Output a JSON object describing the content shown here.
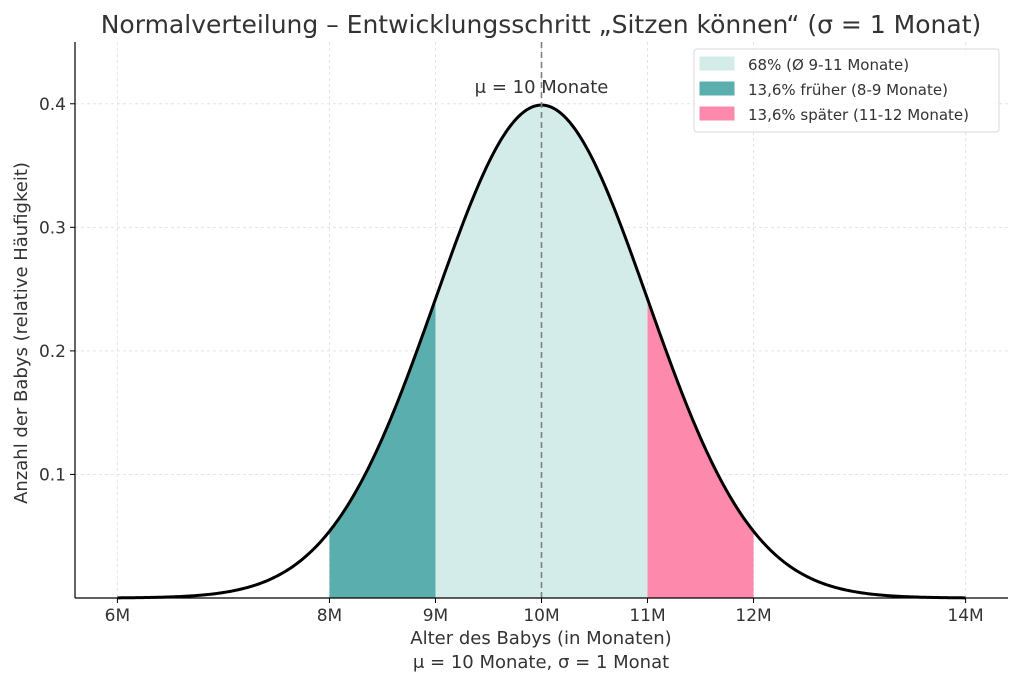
{
  "chart_data": {
    "type": "area",
    "title": "Normalverteilung – Entwicklungsschritt „Sitzen können“ (σ = 1 Monat)",
    "xlabel": "Alter des Babys (in Monaten)",
    "xlabel_sub": "μ = 10 Monate, σ = 1 Monat",
    "ylabel": "Anzahl der Babys (relative Häufigkeit)",
    "mu": 10,
    "sigma": 1,
    "xlim": [
      5.6,
      14.4
    ],
    "ylim": [
      0,
      0.45
    ],
    "x_ticks": [
      {
        "value": 6,
        "label": "6M"
      },
      {
        "value": 8,
        "label": "8M"
      },
      {
        "value": 9,
        "label": "9M"
      },
      {
        "value": 10,
        "label": "10M"
      },
      {
        "value": 11,
        "label": "11M"
      },
      {
        "value": 12,
        "label": "12M"
      },
      {
        "value": 14,
        "label": "14M"
      }
    ],
    "y_ticks": [
      {
        "value": 0.1,
        "label": "0.1"
      },
      {
        "value": 0.2,
        "label": "0.2"
      },
      {
        "value": 0.3,
        "label": "0.3"
      },
      {
        "value": 0.4,
        "label": "0.4"
      }
    ],
    "curve_x_range": [
      6,
      14
    ],
    "regions": [
      {
        "name": "68% (Ø 9-11 Monate)",
        "from": 9,
        "to": 11,
        "color": "#d3ece9"
      },
      {
        "name": "13,6% früher (8-9 Monate)",
        "from": 8,
        "to": 9,
        "color": "#5aafae"
      },
      {
        "name": "13,6% später (11-12 Monate)",
        "from": 11,
        "to": 12,
        "color": "#fd8aac"
      }
    ],
    "mean_line": {
      "x": 10,
      "label": "μ = 10 Monate",
      "color": "#808080"
    },
    "grid": true,
    "legend_position": "top-right"
  }
}
